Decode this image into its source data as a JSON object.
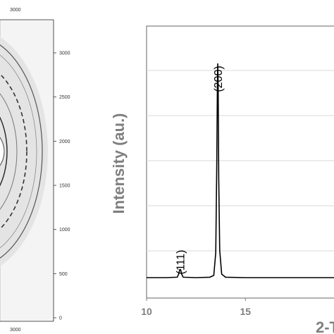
{
  "chart_data": [
    {
      "type": "image",
      "description_free": true,
      "axis_ticks": {
        "right_y": [
          "3000",
          "2500",
          "2000",
          "1500",
          "1000",
          "500",
          "0"
        ],
        "top_x": [
          "3000"
        ],
        "bottom_x": [
          "3000"
        ]
      }
    },
    {
      "type": "line",
      "ylabel": "Intensity (au.)",
      "xlabel": "2-T",
      "xlim": [
        10,
        19.5
      ],
      "ylim": [
        0,
        10
      ],
      "grid": "horizontal",
      "x_ticks": [
        "10",
        "15"
      ],
      "annotations": [
        {
          "text": "(111)",
          "x": 11.7
        },
        {
          "text": "(200)",
          "x": 13.6
        }
      ],
      "series": [
        {
          "x": [
            10.0,
            11.0,
            11.55,
            11.62,
            11.68,
            11.72,
            11.78,
            11.85,
            12.5,
            13.2,
            13.4,
            13.5,
            13.55,
            13.58,
            13.6,
            13.62,
            13.65,
            13.7,
            13.8,
            14.0,
            15.0,
            17.0,
            19.5
          ],
          "y": [
            0.1,
            0.1,
            0.12,
            0.25,
            0.45,
            0.45,
            0.25,
            0.12,
            0.1,
            0.12,
            0.2,
            1.2,
            5.0,
            8.5,
            9.5,
            8.5,
            4.5,
            1.3,
            0.25,
            0.12,
            0.1,
            0.1,
            0.1
          ]
        }
      ]
    }
  ]
}
